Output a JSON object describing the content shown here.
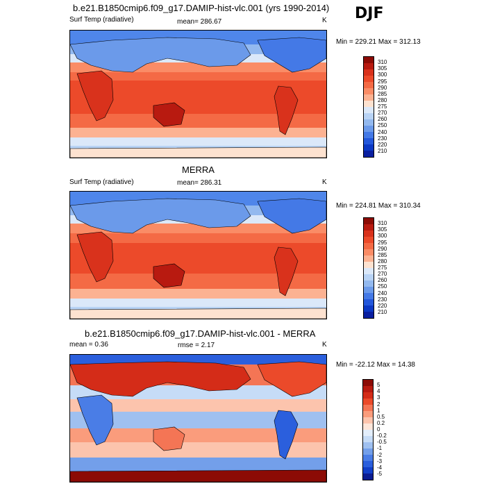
{
  "season": "DJF",
  "units": "K",
  "panels": [
    {
      "title": "b.e21.B1850cmip6.f09_g17.DAMIP-hist-vlc.001 (yrs 1990-2014)",
      "left_label": "Surf Temp (radiative)",
      "center_label": "mean= 286.67",
      "right_label": "K",
      "minmax": "Min = 229.21 Max = 312.13",
      "levels": [
        "310",
        "305",
        "300",
        "295",
        "290",
        "285",
        "280",
        "275",
        "270",
        "260",
        "250",
        "240",
        "230",
        "220",
        "210"
      ],
      "colors": [
        "#8c0b05",
        "#b81a10",
        "#d9321c",
        "#ec4a2a",
        "#f46a45",
        "#fa8c66",
        "#fcb292",
        "#fde2d0",
        "#dbe8f9",
        "#b8d3f5",
        "#93b9ef",
        "#6b9aea",
        "#4479e6",
        "#2357db",
        "#0b38c4",
        "#0a1fa0"
      ]
    },
    {
      "title": "MERRA",
      "left_label": "Surf Temp (radiative)",
      "center_label": "mean= 286.31",
      "right_label": "K",
      "minmax": "Min = 224.81 Max = 310.34",
      "levels": [
        "310",
        "305",
        "300",
        "295",
        "290",
        "285",
        "280",
        "275",
        "270",
        "260",
        "250",
        "240",
        "230",
        "220",
        "210"
      ],
      "colors": [
        "#8c0b05",
        "#b81a10",
        "#d9321c",
        "#ec4a2a",
        "#f46a45",
        "#fa8c66",
        "#fcb292",
        "#fde2d0",
        "#dbe8f9",
        "#b8d3f5",
        "#93b9ef",
        "#6b9aea",
        "#4479e6",
        "#2357db",
        "#0b38c4",
        "#0a1fa0"
      ]
    },
    {
      "title": "b.e21.B1850cmip6.f09_g17.DAMIP-hist-vlc.001 - MERRA",
      "left_label": "mean = 0.36",
      "center_label": "rmse = 2.17",
      "right_label": "K",
      "minmax": "Min = -22.12 Max = 14.38",
      "levels": [
        "5",
        "4",
        "3",
        "2",
        "1",
        "0.5",
        "0.2",
        "0",
        "-0.2",
        "-0.5",
        "-1",
        "-2",
        "-3",
        "-4",
        "-5"
      ],
      "colors": [
        "#8c0b05",
        "#b81a10",
        "#d42c18",
        "#eb4a2a",
        "#f47555",
        "#fa9c7c",
        "#fcc4ad",
        "#fde6da",
        "#e3eefb",
        "#c6dcf7",
        "#9fc0f0",
        "#739fea",
        "#4a7de6",
        "#2b5fdd",
        "#123fc8",
        "#0b1d92"
      ]
    }
  ]
}
